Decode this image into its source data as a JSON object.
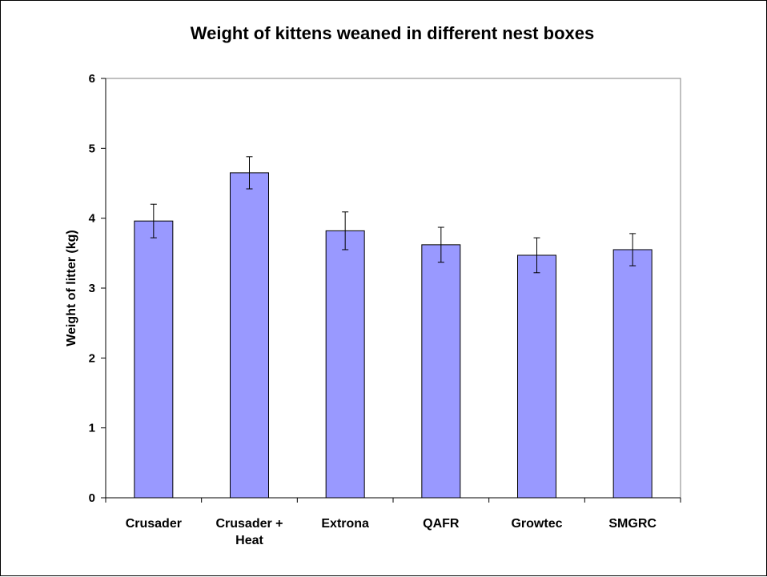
{
  "chart_data": {
    "type": "bar",
    "title": "Weight of kittens weaned in different nest boxes",
    "xlabel": "",
    "ylabel": "Weight of litter (kg)",
    "ylim": [
      0,
      6
    ],
    "yticks": [
      "0",
      "1",
      "2",
      "3",
      "4",
      "5",
      "6"
    ],
    "categories": [
      [
        "Crusader"
      ],
      [
        "Crusader +",
        "Heat"
      ],
      [
        "Extrona"
      ],
      [
        "QAFR"
      ],
      [
        "Growtec"
      ],
      [
        "SMGRC"
      ]
    ],
    "values": [
      3.96,
      4.65,
      3.82,
      3.62,
      3.47,
      3.55
    ],
    "error_bars": [
      0.24,
      0.23,
      0.27,
      0.25,
      0.25,
      0.23
    ],
    "bar_color": "#9999ff",
    "grid": false,
    "legend": "none"
  }
}
